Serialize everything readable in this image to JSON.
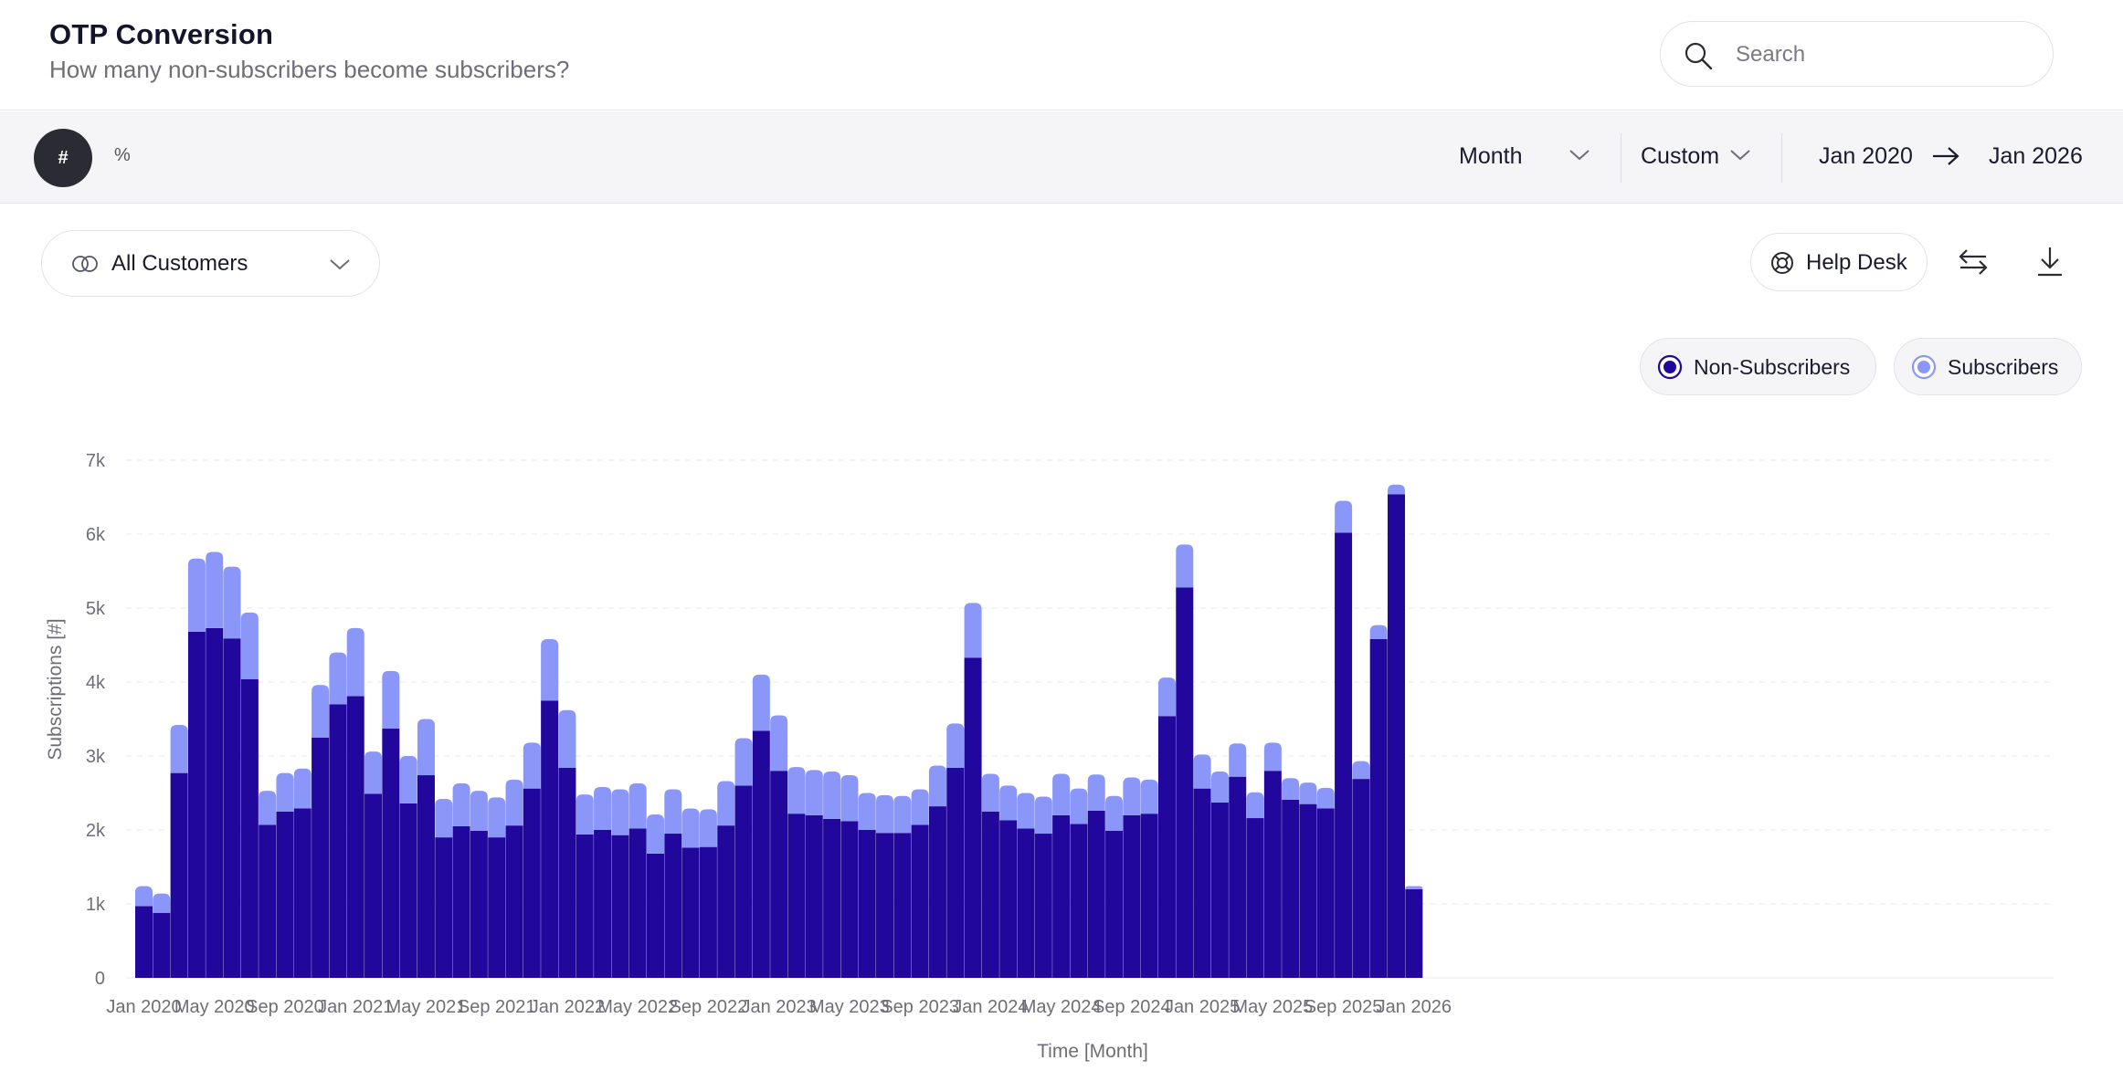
{
  "header": {
    "title": "OTP Conversion",
    "subtitle": "How many non-subscribers become subscribers?",
    "search_placeholder": "Search"
  },
  "toolbar": {
    "mode_number": "#",
    "mode_percent": "%",
    "granularity": "Month",
    "range_type": "Custom",
    "date_from": "Jan 2020",
    "date_to": "Jan 2026"
  },
  "filters": {
    "segment": "All Customers",
    "help_label": "Help Desk"
  },
  "legend": {
    "items": [
      {
        "label": "Non-Subscribers",
        "color": "#21079b"
      },
      {
        "label": "Subscribers",
        "color": "#8b97f8"
      }
    ]
  },
  "icons": [
    "search-icon",
    "chevron-down-icon",
    "arrow-right-icon",
    "customers-circles-icon",
    "lifebuoy-icon",
    "swap-arrows-icon",
    "download-icon"
  ],
  "chart_data": {
    "type": "bar",
    "stacked": true,
    "xlabel": "Time [Month]",
    "ylabel": "Subscriptions [#]",
    "ylim": [
      0,
      7000
    ],
    "yticks": [
      0,
      1000,
      2000,
      3000,
      4000,
      5000,
      6000,
      7000
    ],
    "ytick_labels": [
      "0",
      "1k",
      "2k",
      "3k",
      "4k",
      "5k",
      "6k",
      "7k"
    ],
    "grid": true,
    "legend_position": "top-right",
    "xtick_labels": [
      "Jan 2020",
      "May 2020",
      "Sep 2020",
      "Jan 2021",
      "May 2021",
      "Sep 2021",
      "Jan 2022",
      "May 2022",
      "Sep 2022",
      "Jan 2023",
      "May 2023",
      "Sep 2023",
      "Jan 2024",
      "May 2024",
      "Sep 2024",
      "Jan 2025",
      "May 2025",
      "Sep 2025",
      "Jan 2026"
    ],
    "categories": [
      "Jan 2020",
      "Feb 2020",
      "Mar 2020",
      "Apr 2020",
      "May 2020",
      "Jun 2020",
      "Jul 2020",
      "Aug 2020",
      "Sep 2020",
      "Oct 2020",
      "Nov 2020",
      "Dec 2020",
      "Jan 2021",
      "Feb 2021",
      "Mar 2021",
      "Apr 2021",
      "May 2021",
      "Jun 2021",
      "Jul 2021",
      "Aug 2021",
      "Sep 2021",
      "Oct 2021",
      "Nov 2021",
      "Dec 2021",
      "Jan 2022",
      "Feb 2022",
      "Mar 2022",
      "Apr 2022",
      "May 2022",
      "Jun 2022",
      "Jul 2022",
      "Aug 2022",
      "Sep 2022",
      "Oct 2022",
      "Nov 2022",
      "Dec 2022",
      "Jan 2023",
      "Feb 2023",
      "Mar 2023",
      "Apr 2023",
      "May 2023",
      "Jun 2023",
      "Jul 2023",
      "Aug 2023",
      "Sep 2023",
      "Oct 2023",
      "Nov 2023",
      "Dec 2023",
      "Jan 2024",
      "Feb 2024",
      "Mar 2024",
      "Apr 2024",
      "May 2024",
      "Jun 2024",
      "Jul 2024",
      "Aug 2024",
      "Sep 2024",
      "Oct 2024",
      "Nov 2024",
      "Dec 2024",
      "Jan 2025",
      "Feb 2025",
      "Mar 2025",
      "Apr 2025",
      "May 2025",
      "Jun 2025",
      "Jul 2025",
      "Aug 2025",
      "Sep 2025",
      "Oct 2025",
      "Nov 2025",
      "Dec 2025",
      "Jan 2026"
    ],
    "series": [
      {
        "name": "Non-Subscribers",
        "color": "#21079b",
        "values": [
          970,
          880,
          2770,
          4680,
          4730,
          4590,
          4040,
          2070,
          2250,
          2290,
          3250,
          3700,
          3810,
          2490,
          3370,
          2360,
          2740,
          1900,
          2050,
          1990,
          1900,
          2060,
          2560,
          3750,
          2840,
          1940,
          2000,
          1930,
          2020,
          1680,
          1950,
          1760,
          1770,
          2060,
          2600,
          3340,
          2800,
          2220,
          2200,
          2150,
          2120,
          2000,
          1960,
          1960,
          2070,
          2320,
          2840,
          4330,
          2250,
          2130,
          2020,
          1950,
          2200,
          2080,
          2260,
          1990,
          2200,
          2220,
          3540,
          5280,
          2560,
          2370,
          2720,
          2160,
          2800,
          2410,
          2350,
          2290,
          6020,
          2690,
          4580,
          6540,
          1200
        ]
      },
      {
        "name": "Subscribers",
        "color": "#8b97f8",
        "values": [
          270,
          260,
          650,
          990,
          1030,
          970,
          900,
          460,
          520,
          540,
          710,
          700,
          920,
          570,
          780,
          640,
          760,
          520,
          580,
          540,
          540,
          620,
          620,
          830,
          780,
          540,
          580,
          620,
          610,
          530,
          600,
          530,
          510,
          600,
          640,
          760,
          750,
          630,
          610,
          640,
          620,
          500,
          510,
          500,
          480,
          550,
          600,
          740,
          510,
          470,
          480,
          500,
          560,
          480,
          490,
          470,
          510,
          460,
          520,
          580,
          460,
          420,
          450,
          350,
          380,
          290,
          290,
          280,
          430,
          240,
          190,
          130,
          40
        ]
      }
    ]
  }
}
